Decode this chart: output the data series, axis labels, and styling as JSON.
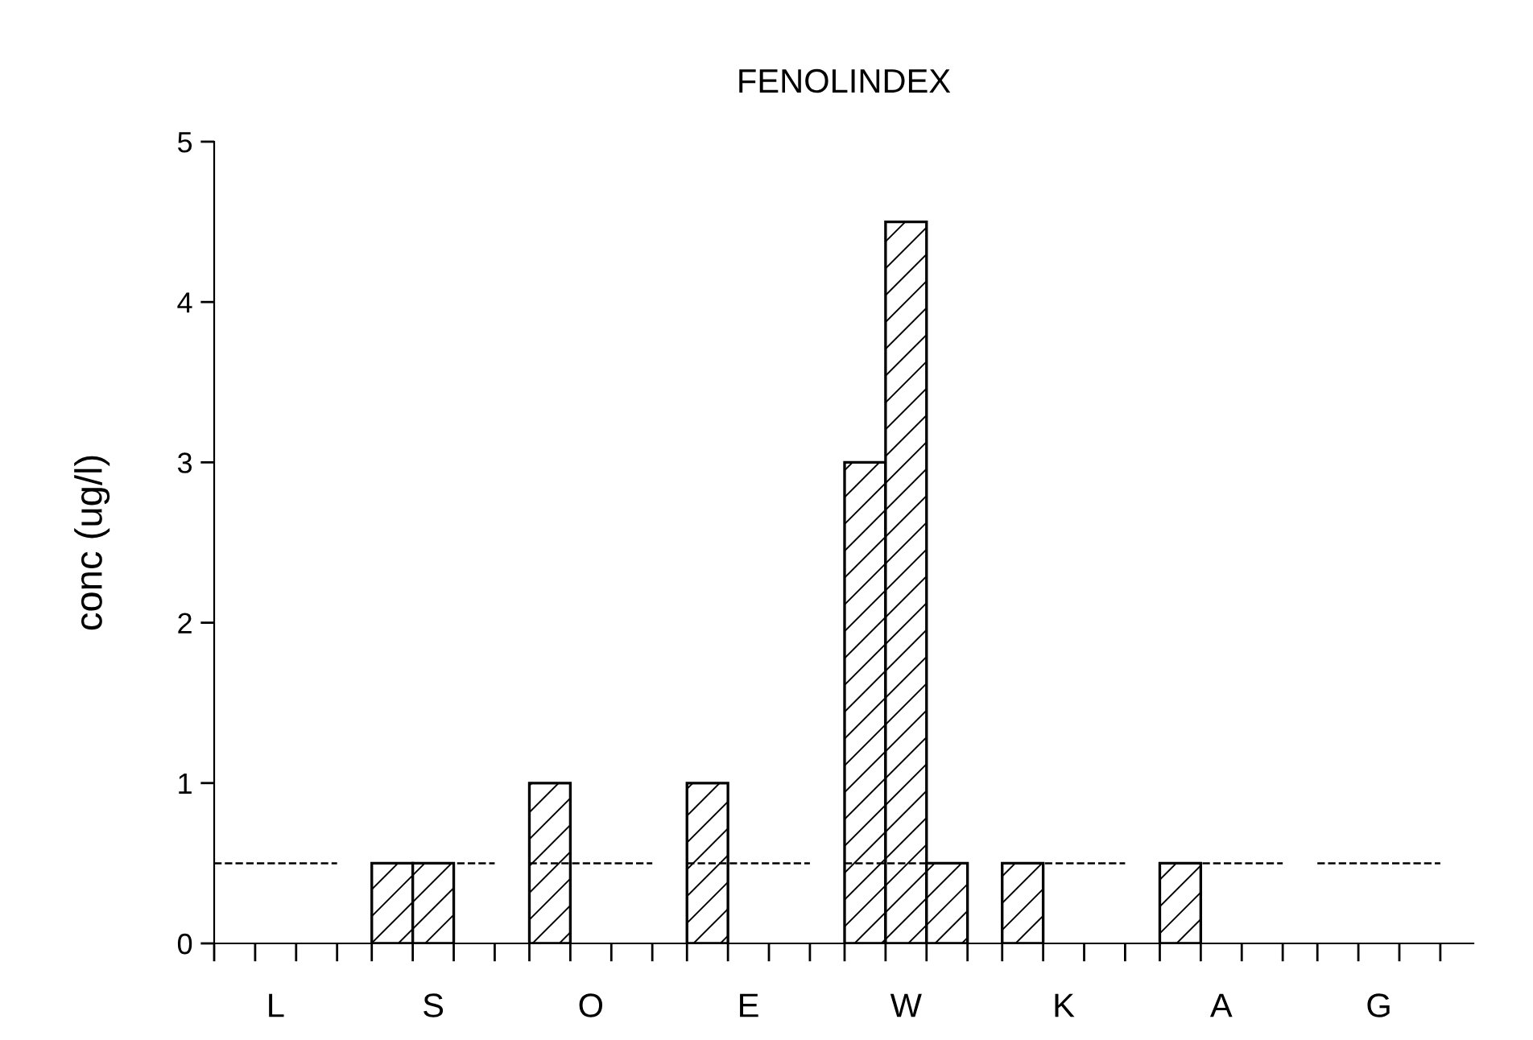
{
  "chart_data": {
    "type": "bar",
    "title": "FENOLINDEX",
    "ylabel": "conc (ug/l)",
    "categories": [
      "L",
      "S",
      "O",
      "E",
      "W",
      "K",
      "A",
      "G"
    ],
    "series": [
      {
        "color": "#000000",
        "values": [
          0,
          0.5,
          1,
          1,
          3,
          0.5,
          0.5,
          0
        ]
      },
      {
        "color": "#000000",
        "values": [
          0,
          0.5,
          0,
          0,
          4.5,
          0,
          0,
          0
        ]
      },
      {
        "color": "#000000",
        "values": [
          0,
          0,
          0,
          0,
          0.5,
          0,
          0,
          0
        ]
      }
    ],
    "ylim": [
      0,
      5
    ],
    "yticks": [
      0,
      1,
      2,
      3,
      4,
      5
    ],
    "grid": false,
    "legend": false,
    "ref_lines": [
      {
        "axis": "y",
        "value": 0.5,
        "line_style": "dashed",
        "color": "#000000"
      }
    ]
  }
}
